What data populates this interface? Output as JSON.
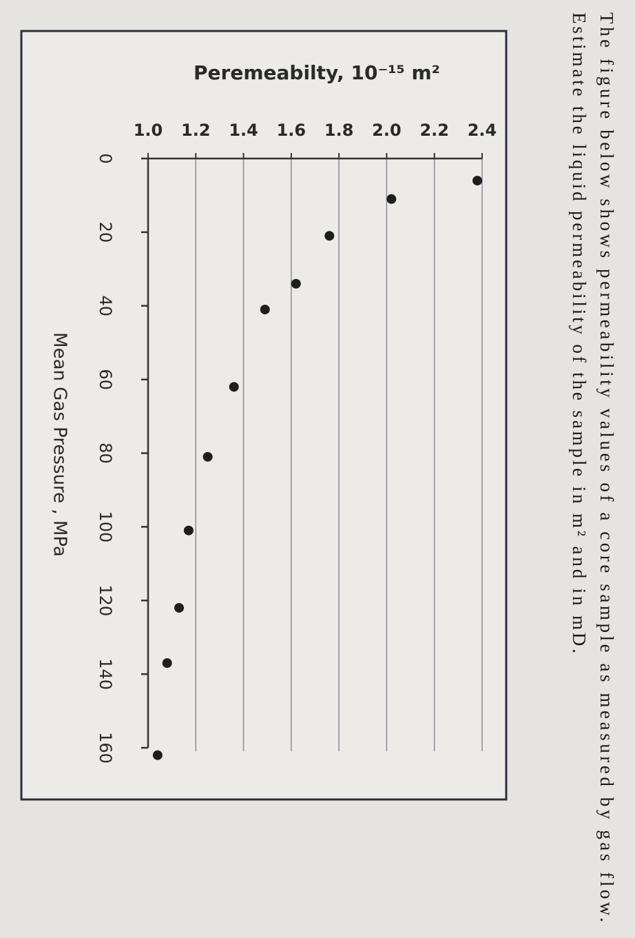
{
  "question": {
    "lines": [
      "The figure below shows permeability values of a core sample as measured by gas flow.",
      "Estimate the liquid permeability of the sample in m² and in mD."
    ]
  },
  "chart_data": {
    "type": "scatter",
    "y_label": "Peremeabilty, 10⁻¹⁵ m²",
    "x_label": "Mean Gas Pressure , MPa",
    "x": [
      6,
      11,
      21,
      34,
      41,
      62,
      81,
      101,
      122,
      137,
      162
    ],
    "values": [
      2.38,
      2.02,
      1.76,
      1.62,
      1.49,
      1.36,
      1.25,
      1.17,
      1.13,
      1.08,
      1.04
    ],
    "color": "#1e1e1e",
    "xlim": [
      0,
      160
    ],
    "xticks": [
      0,
      20,
      40,
      60,
      80,
      100,
      120,
      140,
      160
    ],
    "ylim": [
      1.0,
      2.4
    ],
    "yticks": [
      {
        "value": 1.0,
        "label": "1.0"
      },
      1.2,
      1.4,
      1.6,
      1.8,
      {
        "value": 2.0,
        "label": "2.0"
      },
      2.2,
      2.4
    ],
    "grid": true
  }
}
